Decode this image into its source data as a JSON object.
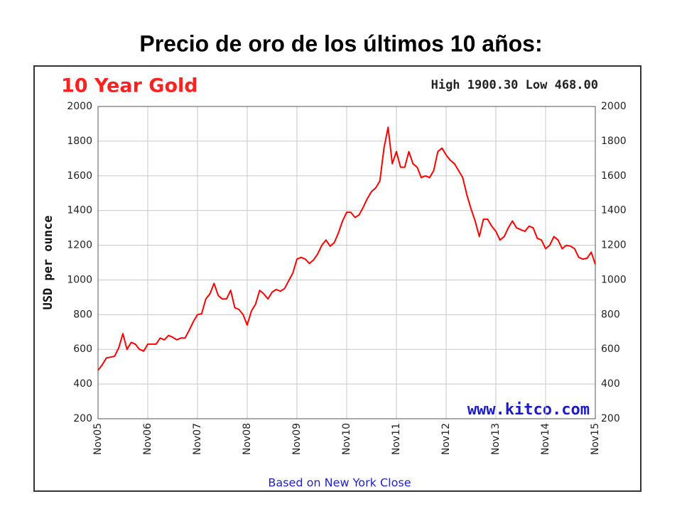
{
  "page_title": "Precio de oro de los últimos 10 años:",
  "chart_data": {
    "type": "line",
    "title": "10 Year Gold",
    "subtitle": "High 1900.30 Low 468.00",
    "ylabel": "USD per ounce",
    "annotation": "www.kitco.com",
    "xlabel": "Based on New York Close",
    "categories": [
      "Nov05",
      null,
      null,
      null,
      null,
      null,
      null,
      null,
      null,
      null,
      null,
      null,
      "Nov06",
      null,
      null,
      null,
      null,
      null,
      null,
      null,
      null,
      null,
      null,
      null,
      "Nov07",
      null,
      null,
      null,
      null,
      null,
      null,
      null,
      null,
      null,
      null,
      null,
      "Nov08",
      null,
      null,
      null,
      null,
      null,
      null,
      null,
      null,
      null,
      null,
      null,
      "Nov09",
      null,
      null,
      null,
      null,
      null,
      null,
      null,
      null,
      null,
      null,
      null,
      "Nov10",
      null,
      null,
      null,
      null,
      null,
      null,
      null,
      null,
      null,
      null,
      null,
      "Nov11",
      null,
      null,
      null,
      null,
      null,
      null,
      null,
      null,
      null,
      null,
      null,
      "Nov12",
      null,
      null,
      null,
      null,
      null,
      null,
      null,
      null,
      null,
      null,
      null,
      "Nov13",
      null,
      null,
      null,
      null,
      null,
      null,
      null,
      null,
      null,
      null,
      null,
      "Nov14",
      null,
      null,
      null,
      null,
      null,
      null,
      null,
      null,
      null,
      null,
      null,
      "Nov15"
    ],
    "series": [
      {
        "name": "Gold",
        "color": "#ff0000",
        "values": [
          480,
          510,
          550,
          555,
          560,
          610,
          690,
          600,
          640,
          630,
          600,
          590,
          630,
          630,
          630,
          665,
          655,
          680,
          670,
          655,
          665,
          665,
          710,
          760,
          800,
          805,
          890,
          920,
          980,
          910,
          890,
          890,
          940,
          840,
          830,
          800,
          740,
          820,
          860,
          940,
          920,
          890,
          930,
          945,
          935,
          950,
          995,
          1040,
          1120,
          1130,
          1120,
          1095,
          1115,
          1150,
          1200,
          1230,
          1195,
          1215,
          1270,
          1340,
          1390,
          1390,
          1360,
          1375,
          1420,
          1470,
          1510,
          1530,
          1570,
          1760,
          1880,
          1670,
          1740,
          1650,
          1650,
          1740,
          1670,
          1650,
          1590,
          1600,
          1590,
          1630,
          1740,
          1760,
          1720,
          1690,
          1670,
          1630,
          1590,
          1490,
          1410,
          1340,
          1250,
          1350,
          1350,
          1310,
          1280,
          1230,
          1250,
          1300,
          1340,
          1300,
          1290,
          1280,
          1310,
          1300,
          1240,
          1230,
          1180,
          1200,
          1250,
          1230,
          1180,
          1200,
          1195,
          1180,
          1130,
          1120,
          1125,
          1160,
          1090
        ]
      }
    ],
    "ylim": [
      200,
      2000
    ],
    "yticks": [
      200,
      400,
      600,
      800,
      1000,
      1200,
      1400,
      1600,
      1800,
      2000
    ],
    "grid": true
  }
}
